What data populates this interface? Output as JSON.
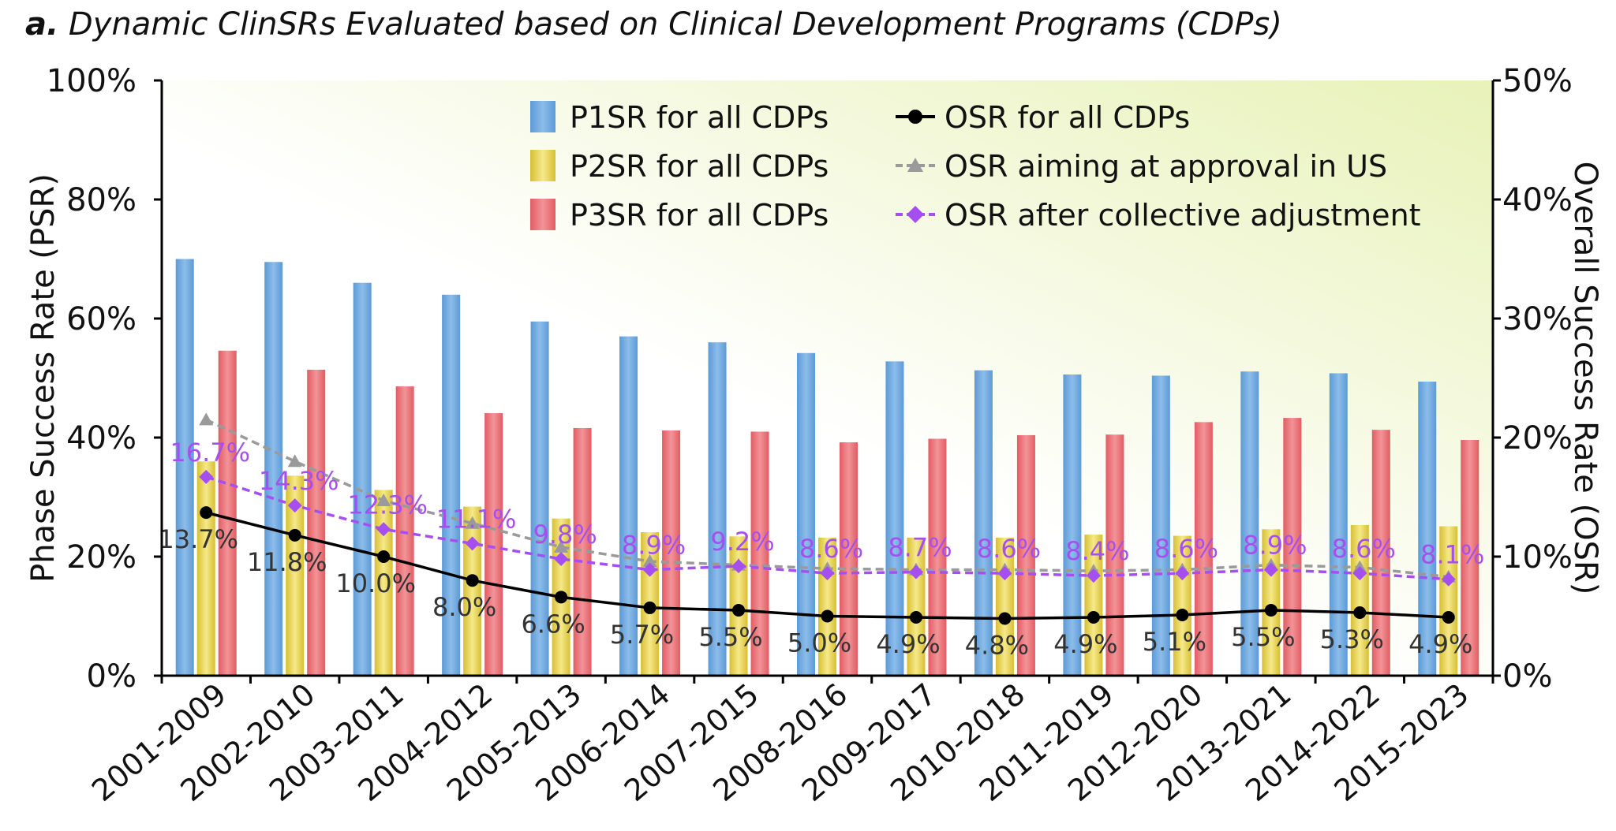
{
  "title_prefix": "a.",
  "title_text": "Dynamic ClinSRs Evaluated based on Clinical Development Programs (CDPs)",
  "chart_data": {
    "type": "bar",
    "categories": [
      "2001-2009",
      "2002-2010",
      "2003-2011",
      "2004-2012",
      "2005-2013",
      "2006-2014",
      "2007-2015",
      "2008-2016",
      "2009-2017",
      "2010-2018",
      "2011-2019",
      "2012-2020",
      "2013-2021",
      "2014-2022",
      "2015-2023"
    ],
    "ylabel_left": "Phase Success Rate (PSR)",
    "ylabel_right": "Overall Success Rate (OSR)",
    "ylim_left": [
      0,
      100
    ],
    "ylim_right": [
      0,
      50
    ],
    "yticks_left": [
      "0%",
      "20%",
      "40%",
      "60%",
      "80%",
      "100%"
    ],
    "yticks_right": [
      "0%",
      "10%",
      "20%",
      "30%",
      "40%",
      "50%"
    ],
    "legend_position": "top",
    "bar_series": [
      {
        "name": "P1SR for all CDPs",
        "color": "#6fa8dc",
        "values": [
          70.0,
          69.5,
          66.0,
          64.0,
          59.5,
          57.0,
          56.0,
          54.2,
          52.8,
          51.3,
          50.6,
          50.4,
          51.1,
          50.8,
          49.4
        ]
      },
      {
        "name": "P2SR for all CDPs",
        "color": "#e8d44d",
        "values": [
          36.0,
          33.6,
          31.2,
          28.4,
          26.4,
          24.1,
          23.4,
          23.2,
          23.2,
          23.2,
          23.7,
          23.5,
          24.6,
          25.3,
          25.1
        ]
      },
      {
        "name": "P3SR for all CDPs",
        "color": "#ea6f74",
        "values": [
          54.6,
          51.4,
          48.6,
          44.1,
          41.6,
          41.2,
          41.0,
          39.2,
          39.8,
          40.4,
          40.5,
          42.6,
          43.3,
          41.3,
          39.6
        ]
      }
    ],
    "line_series": [
      {
        "name": "OSR for all CDPs",
        "color": "#000000",
        "marker": "circle",
        "values": [
          13.7,
          11.8,
          10.0,
          8.0,
          6.6,
          5.7,
          5.5,
          5.0,
          4.9,
          4.8,
          4.9,
          5.1,
          5.5,
          5.3,
          4.9
        ],
        "labels": [
          "13.7%",
          "11.8%",
          "10.0%",
          "8.0%",
          "6.6%",
          "5.7%",
          "5.5%",
          "5.0%",
          "4.9%",
          "4.8%",
          "4.9%",
          "5.1%",
          "5.5%",
          "5.3%",
          "4.9%"
        ]
      },
      {
        "name": "OSR aiming at approval in US",
        "color": "#9a9a9a",
        "marker": "triangle",
        "values": [
          21.5,
          18.0,
          14.7,
          12.8,
          10.8,
          9.6,
          9.3,
          9.0,
          8.9,
          8.9,
          8.8,
          8.9,
          9.3,
          9.1,
          8.3
        ]
      },
      {
        "name": "OSR after collective adjustment",
        "color": "#a64ff0",
        "marker": "diamond",
        "values": [
          16.7,
          14.3,
          12.3,
          11.1,
          9.8,
          8.9,
          9.2,
          8.6,
          8.7,
          8.6,
          8.4,
          8.6,
          8.9,
          8.6,
          8.1
        ],
        "labels": [
          "16.7%",
          "14.3%",
          "12.3%",
          "11.1%",
          "9.8%",
          "8.9%",
          "9.2%",
          "8.6%",
          "8.7%",
          "8.6%",
          "8.4%",
          "8.6%",
          "8.9%",
          "8.6%",
          "8.1%"
        ]
      }
    ]
  },
  "colors": {
    "plot_bg_left": "#ffffff",
    "plot_bg_right": "#e8f2b8",
    "axis": "#000000"
  }
}
